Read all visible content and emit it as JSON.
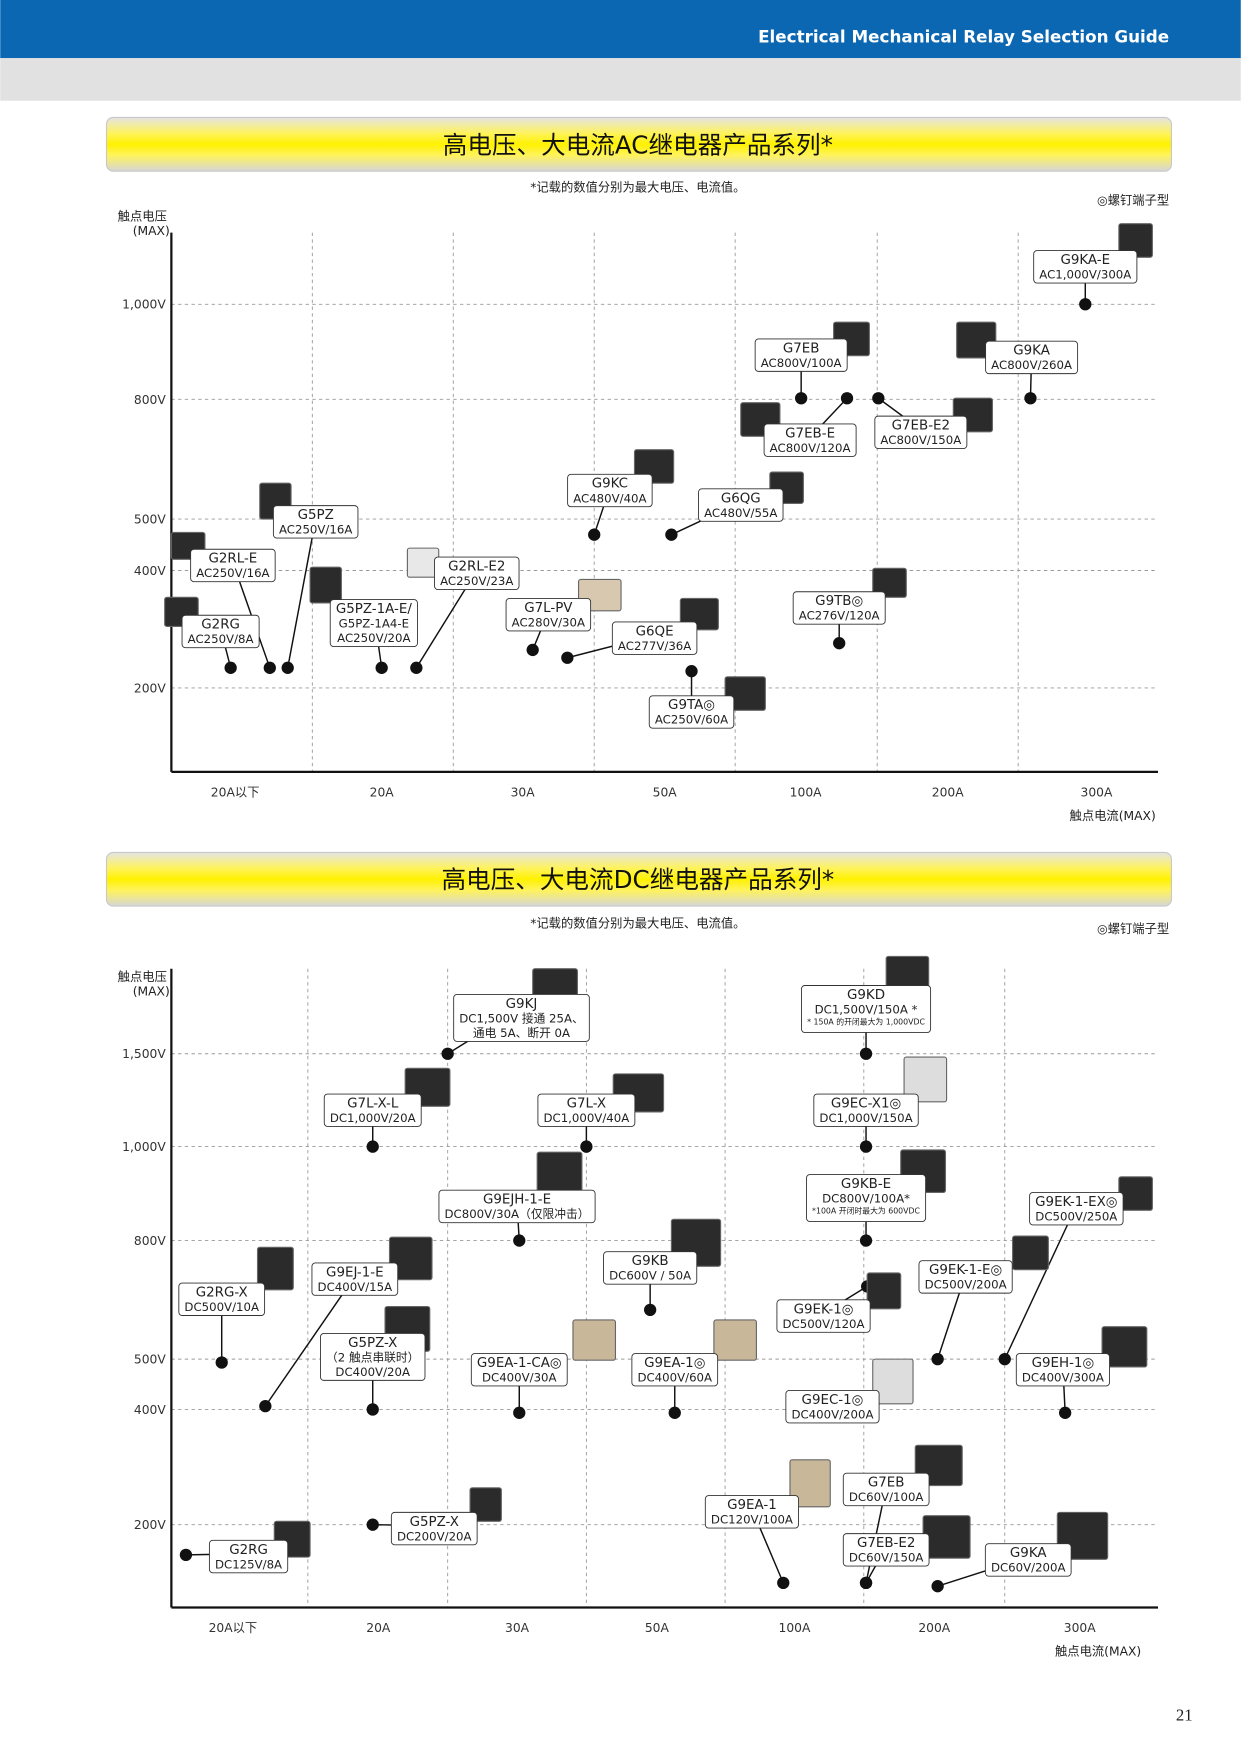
{
  "header": {
    "title": "Electrical Mechanical Relay Selection Guide"
  },
  "sections": [
    {
      "title": "高电压、大电流AC继电器产品系列*",
      "note": "*记载的数值分别为最大电压、电流值。",
      "legend": "◎螺钉端子型",
      "y_axis_label": [
        "触点电压",
        "(MAX)"
      ],
      "y_ticks": [
        "1,000V",
        "800V",
        "500V",
        "400V",
        "200V"
      ],
      "x_ticks": [
        "20A以下",
        "20A",
        "30A",
        "50A",
        "100A",
        "200A",
        "300A"
      ],
      "x_axis_label": "触点电流(MAX)",
      "products": [
        {
          "name": "G9KA-E",
          "spec": [
            "AC1,000V/300A"
          ]
        },
        {
          "name": "G7EB",
          "spec": [
            "AC800V/100A"
          ]
        },
        {
          "name": "G9KA",
          "spec": [
            "AC800V/260A"
          ]
        },
        {
          "name": "G7EB-E",
          "spec": [
            "AC800V/120A"
          ]
        },
        {
          "name": "G7EB-E2",
          "spec": [
            "AC800V/150A"
          ]
        },
        {
          "name": "G9KC",
          "spec": [
            "AC480V/40A"
          ]
        },
        {
          "name": "G6QG",
          "spec": [
            "AC480V/55A"
          ]
        },
        {
          "name": "G5PZ",
          "spec": [
            "AC250V/16A"
          ]
        },
        {
          "name": "G2RL-E",
          "spec": [
            "AC250V/16A"
          ]
        },
        {
          "name": "G2RL-E2",
          "spec": [
            "AC250V/23A"
          ]
        },
        {
          "name": "G2RG",
          "spec": [
            "AC250V/8A"
          ]
        },
        {
          "name": "G5PZ-1A-E/",
          "spec": [
            "G5PZ-1A4-E",
            "AC250V/20A"
          ]
        },
        {
          "name": "G7L-PV",
          "spec": [
            "AC280V/30A"
          ]
        },
        {
          "name": "G6QE",
          "spec": [
            "AC277V/36A"
          ]
        },
        {
          "name": "G9TB◎",
          "spec": [
            "AC276V/120A"
          ]
        },
        {
          "name": "G9TA◎",
          "spec": [
            "AC250V/60A"
          ]
        }
      ]
    },
    {
      "title": "高电压、大电流DC继电器产品系列*",
      "note": "*记载的数值分别为最大电压、电流值。",
      "legend": "◎螺钉端子型",
      "y_axis_label": [
        "触点电压",
        "(MAX)"
      ],
      "y_ticks": [
        "1,500V",
        "1,000V",
        "800V",
        "500V",
        "400V",
        "200V"
      ],
      "x_ticks": [
        "20A以下",
        "20A",
        "30A",
        "50A",
        "100A",
        "200A",
        "300A"
      ],
      "x_axis_label": "触点电流(MAX)",
      "products": [
        {
          "name": "G9KJ",
          "spec": [
            "DC1,500V 接通 25A、",
            "通电 5A、断开 0A"
          ]
        },
        {
          "name": "G9KD",
          "spec": [
            "DC1,500V/150A *",
            "* 150A 的开闭最大为 1,000VDC"
          ]
        },
        {
          "name": "G7L-X-L",
          "spec": [
            "DC1,000V/20A"
          ]
        },
        {
          "name": "G7L-X",
          "spec": [
            "DC1,000V/40A"
          ]
        },
        {
          "name": "G9EC-X1◎",
          "spec": [
            "DC1,000V/150A"
          ]
        },
        {
          "name": "G9EJH-1-E",
          "spec": [
            "DC800V/30A（仅限冲击）"
          ]
        },
        {
          "name": "G9KB-E",
          "spec": [
            "DC800V/100A*",
            "*100A 开闭时最大为 600VDC"
          ]
        },
        {
          "name": "G9EK-1-EX◎",
          "spec": [
            "DC500V/250A"
          ]
        },
        {
          "name": "G2RG-X",
          "spec": [
            "DC500V/10A"
          ]
        },
        {
          "name": "G9EJ-1-E",
          "spec": [
            "DC400V/15A"
          ]
        },
        {
          "name": "G9KB",
          "spec": [
            "DC600V / 50A"
          ]
        },
        {
          "name": "G9EK-1-E◎",
          "spec": [
            "DC500V/200A"
          ]
        },
        {
          "name": "G9EK-1◎",
          "spec": [
            "DC500V/120A"
          ]
        },
        {
          "name": "G5PZ-X",
          "spec": [
            "（2 触点串联时）",
            "DC400V/20A"
          ]
        },
        {
          "name": "G9EA-1-CA◎",
          "spec": [
            "DC400V/30A"
          ]
        },
        {
          "name": "G9EA-1◎",
          "spec": [
            "DC400V/60A"
          ]
        },
        {
          "name": "G9EC-1◎",
          "spec": [
            "DC400V/200A"
          ]
        },
        {
          "name": "G9EH-1◎",
          "spec": [
            "DC400V/300A"
          ]
        },
        {
          "name": "G5PZ-X",
          "spec": [
            "DC200V/20A"
          ]
        },
        {
          "name": "G9EA-1",
          "spec": [
            "DC120V/100A"
          ]
        },
        {
          "name": "G7EB",
          "spec": [
            "DC60V/100A"
          ]
        },
        {
          "name": "G2RG",
          "spec": [
            "DC125V/8A"
          ]
        },
        {
          "name": "G7EB-E2",
          "spec": [
            "DC60V/150A"
          ]
        },
        {
          "name": "G9KA",
          "spec": [
            "DC60V/200A"
          ]
        }
      ]
    }
  ],
  "page_number": "21"
}
